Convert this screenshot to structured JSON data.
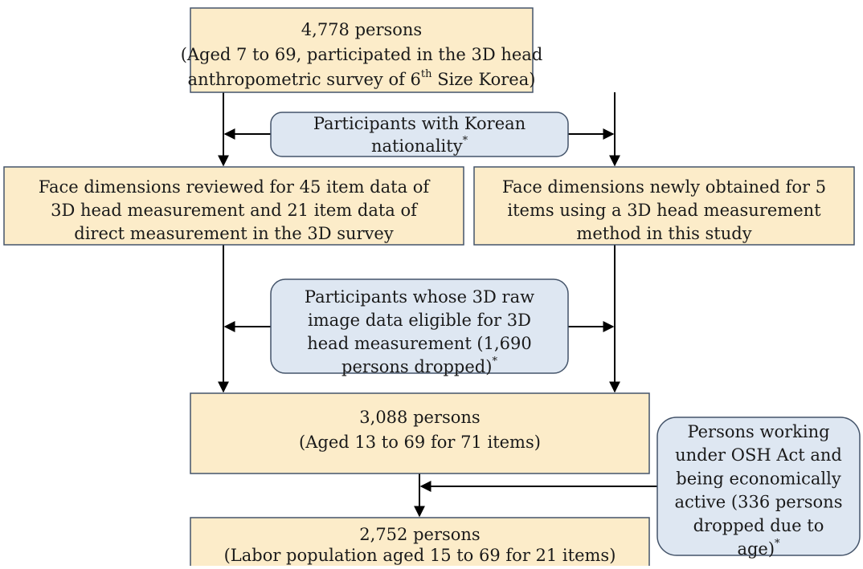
{
  "nodes": [
    {
      "lines": [
        [
          "4,778 persons"
        ],
        [
          "(Aged 7 to 69, participated in the 3D head"
        ],
        [
          "anthropometric survey of 6",
          {
            "sup": "th"
          },
          " Size Korea)"
        ]
      ]
    },
    {
      "lines": [
        [
          "Participants with Korean"
        ],
        [
          "nationality",
          {
            "sup": "*"
          }
        ]
      ]
    },
    {
      "lines": [
        [
          "Face dimensions reviewed for 45 item data of"
        ],
        [
          "3D head measurement and 21 item data of"
        ],
        [
          "direct measurement in the 3D survey"
        ]
      ]
    },
    {
      "lines": [
        [
          "Face dimensions newly obtained for 5"
        ],
        [
          "items using a 3D head measurement"
        ],
        [
          "method in this study"
        ]
      ]
    },
    {
      "lines": [
        [
          "Participants whose 3D raw"
        ],
        [
          "image data eligible for 3D"
        ],
        [
          "head measurement (1,690"
        ],
        [
          "persons dropped)",
          {
            "sup": "*"
          }
        ]
      ]
    },
    {
      "lines": [
        [
          "3,088 persons"
        ],
        [
          "(Aged 13 to 69 for 71 items)"
        ]
      ]
    },
    {
      "lines": [
        [
          "Persons working"
        ],
        [
          "under OSH Act and"
        ],
        [
          "being economically"
        ],
        [
          "active (336 persons"
        ],
        [
          "dropped due to"
        ],
        [
          "age)",
          {
            "sup": "*"
          }
        ]
      ]
    },
    {
      "lines": [
        [
          "2,752 persons"
        ],
        [
          "(Labor population aged 15 to 69 for 21 items)"
        ]
      ]
    }
  ]
}
